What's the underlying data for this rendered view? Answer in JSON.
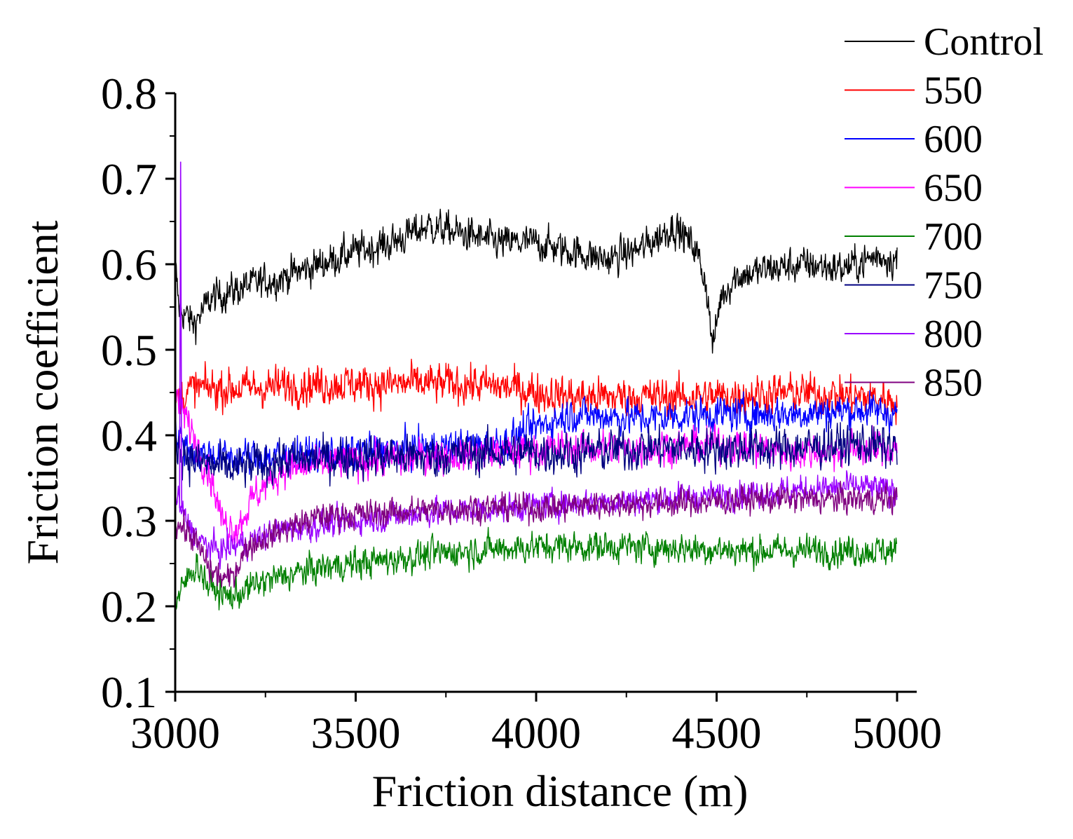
{
  "chart_data": {
    "type": "line",
    "xlabel": "Friction distance (m)",
    "ylabel": "Friction coefficient",
    "xlim": [
      3000,
      5000
    ],
    "ylim": [
      0.1,
      0.8
    ],
    "x_ticks": [
      "3000",
      "3500",
      "4000",
      "4500",
      "5000"
    ],
    "y_ticks": [
      "0.1",
      "0.2",
      "0.3",
      "0.4",
      "0.5",
      "0.6",
      "0.7",
      "0.8"
    ],
    "legend_position": "top-right, outside plot",
    "series": [
      {
        "name": "Control",
        "color": "#000000",
        "noise": 0.025,
        "key_points": [
          [
            3000,
            0.6
          ],
          [
            3010,
            0.55
          ],
          [
            3050,
            0.53
          ],
          [
            3100,
            0.56
          ],
          [
            3200,
            0.575
          ],
          [
            3300,
            0.585
          ],
          [
            3400,
            0.6
          ],
          [
            3500,
            0.615
          ],
          [
            3600,
            0.625
          ],
          [
            3700,
            0.645
          ],
          [
            3800,
            0.635
          ],
          [
            3900,
            0.625
          ],
          [
            4000,
            0.625
          ],
          [
            4100,
            0.615
          ],
          [
            4200,
            0.605
          ],
          [
            4300,
            0.62
          ],
          [
            4380,
            0.645
          ],
          [
            4440,
            0.62
          ],
          [
            4470,
            0.58
          ],
          [
            4490,
            0.5
          ],
          [
            4510,
            0.56
          ],
          [
            4550,
            0.585
          ],
          [
            4650,
            0.595
          ],
          [
            4750,
            0.6
          ],
          [
            4850,
            0.595
          ],
          [
            4950,
            0.61
          ],
          [
            5000,
            0.605
          ]
        ]
      },
      {
        "name": "550",
        "color": "#ff0000",
        "noise": 0.028,
        "key_points": [
          [
            3000,
            0.44
          ],
          [
            3050,
            0.455
          ],
          [
            3200,
            0.455
          ],
          [
            3400,
            0.46
          ],
          [
            3600,
            0.46
          ],
          [
            3800,
            0.46
          ],
          [
            3950,
            0.455
          ],
          [
            4000,
            0.45
          ],
          [
            4100,
            0.445
          ],
          [
            4300,
            0.445
          ],
          [
            4500,
            0.445
          ],
          [
            4700,
            0.45
          ],
          [
            4900,
            0.445
          ],
          [
            5000,
            0.44
          ]
        ]
      },
      {
        "name": "600",
        "color": "#0000ff",
        "noise": 0.025,
        "key_points": [
          [
            3000,
            0.4
          ],
          [
            3050,
            0.38
          ],
          [
            3150,
            0.375
          ],
          [
            3300,
            0.375
          ],
          [
            3500,
            0.38
          ],
          [
            3700,
            0.385
          ],
          [
            3900,
            0.39
          ],
          [
            4000,
            0.41
          ],
          [
            4100,
            0.425
          ],
          [
            4300,
            0.42
          ],
          [
            4500,
            0.425
          ],
          [
            4700,
            0.425
          ],
          [
            4900,
            0.43
          ],
          [
            5000,
            0.425
          ]
        ]
      },
      {
        "name": "650",
        "color": "#ff00ff",
        "noise": 0.025,
        "key_points": [
          [
            3000,
            0.45
          ],
          [
            3040,
            0.41
          ],
          [
            3100,
            0.35
          ],
          [
            3130,
            0.3
          ],
          [
            3170,
            0.29
          ],
          [
            3220,
            0.33
          ],
          [
            3300,
            0.36
          ],
          [
            3500,
            0.37
          ],
          [
            3700,
            0.375
          ],
          [
            3900,
            0.38
          ],
          [
            4100,
            0.385
          ],
          [
            4300,
            0.385
          ],
          [
            4500,
            0.39
          ],
          [
            4700,
            0.38
          ],
          [
            5000,
            0.385
          ]
        ]
      },
      {
        "name": "700",
        "color": "#008000",
        "noise": 0.022,
        "key_points": [
          [
            3000,
            0.2
          ],
          [
            3030,
            0.23
          ],
          [
            3060,
            0.25
          ],
          [
            3090,
            0.225
          ],
          [
            3150,
            0.21
          ],
          [
            3250,
            0.23
          ],
          [
            3400,
            0.245
          ],
          [
            3600,
            0.255
          ],
          [
            3800,
            0.265
          ],
          [
            4000,
            0.27
          ],
          [
            4200,
            0.27
          ],
          [
            4400,
            0.268
          ],
          [
            4600,
            0.265
          ],
          [
            4800,
            0.265
          ],
          [
            5000,
            0.265
          ]
        ]
      },
      {
        "name": "750",
        "color": "#000080",
        "noise": 0.03,
        "key_points": [
          [
            3000,
            0.39
          ],
          [
            3050,
            0.37
          ],
          [
            3150,
            0.36
          ],
          [
            3300,
            0.37
          ],
          [
            3500,
            0.375
          ],
          [
            3700,
            0.375
          ],
          [
            3900,
            0.38
          ],
          [
            4100,
            0.38
          ],
          [
            4300,
            0.385
          ],
          [
            4500,
            0.385
          ],
          [
            4700,
            0.385
          ],
          [
            4900,
            0.39
          ],
          [
            5000,
            0.385
          ]
        ]
      },
      {
        "name": "800",
        "color": "#9900ff",
        "noise": 0.02,
        "key_points": [
          [
            3000,
            0.33
          ],
          [
            3030,
            0.3
          ],
          [
            3070,
            0.275
          ],
          [
            3120,
            0.265
          ],
          [
            3200,
            0.275
          ],
          [
            3300,
            0.29
          ],
          [
            3500,
            0.3
          ],
          [
            3700,
            0.31
          ],
          [
            3900,
            0.315
          ],
          [
            4100,
            0.32
          ],
          [
            4300,
            0.325
          ],
          [
            4500,
            0.33
          ],
          [
            4700,
            0.335
          ],
          [
            4900,
            0.34
          ],
          [
            5000,
            0.335
          ]
        ]
      },
      {
        "name": "850",
        "color": "#800080",
        "noise": 0.02,
        "key_points": [
          [
            3000,
            0.3
          ],
          [
            3050,
            0.28
          ],
          [
            3100,
            0.24
          ],
          [
            3150,
            0.23
          ],
          [
            3200,
            0.27
          ],
          [
            3300,
            0.29
          ],
          [
            3400,
            0.305
          ],
          [
            3600,
            0.31
          ],
          [
            3800,
            0.315
          ],
          [
            4000,
            0.315
          ],
          [
            4200,
            0.32
          ],
          [
            4400,
            0.32
          ],
          [
            4600,
            0.325
          ],
          [
            4800,
            0.325
          ],
          [
            5000,
            0.325
          ]
        ]
      }
    ],
    "annotations": [
      {
        "series": "800",
        "x": 3015,
        "y": 0.72,
        "label": "spike"
      }
    ]
  }
}
